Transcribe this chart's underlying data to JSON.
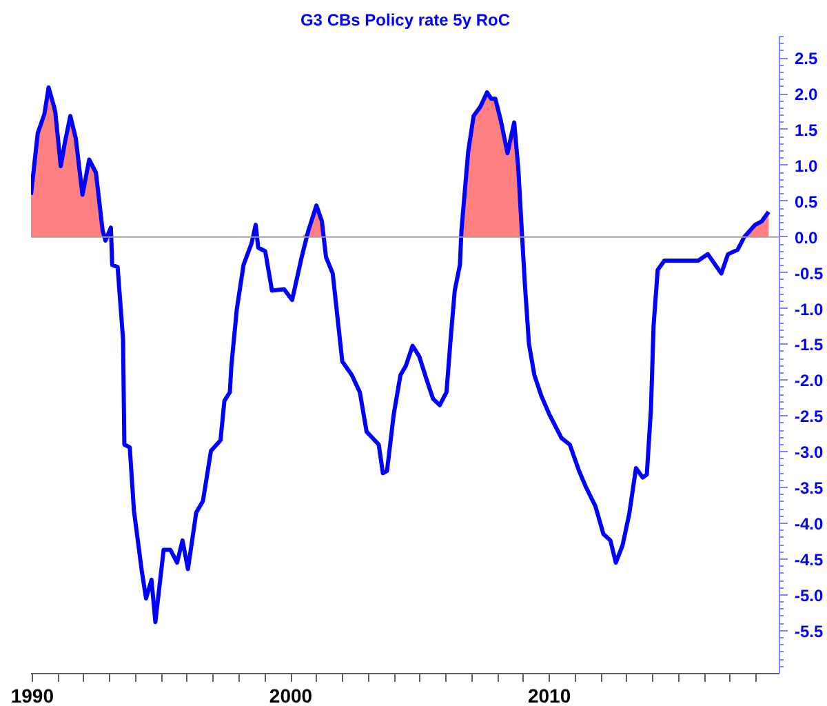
{
  "chart_data": {
    "type": "line",
    "title": "G3 CBs Policy rate 5y RoC",
    "x": [
      1989.95,
      1990.21,
      1990.47,
      1990.63,
      1990.84,
      1990.89,
      1991.1,
      1991.26,
      1991.47,
      1991.68,
      1991.94,
      1992.2,
      1992.46,
      1992.72,
      1992.83,
      1993.04,
      1993.09,
      1993.3,
      1993.51,
      1993.56,
      1993.77,
      1993.93,
      1994.24,
      1994.4,
      1994.61,
      1994.76,
      1995.08,
      1995.34,
      1995.6,
      1995.81,
      1996.02,
      1996.34,
      1996.6,
      1996.91,
      1997.28,
      1997.43,
      1997.64,
      1997.7,
      1997.91,
      1998.17,
      1998.48,
      1998.64,
      1998.74,
      1999.01,
      1999.27,
      1999.74,
      2000.05,
      2000.42,
      2000.68,
      2000.99,
      2001.2,
      2001.36,
      2001.62,
      2001.99,
      2002.36,
      2002.67,
      2002.93,
      2003.4,
      2003.56,
      2003.72,
      2003.98,
      2004.24,
      2004.45,
      2004.71,
      2004.97,
      2005.24,
      2005.5,
      2005.76,
      2006.02,
      2006.18,
      2006.34,
      2006.54,
      2006.6,
      2006.86,
      2007.07,
      2007.33,
      2007.59,
      2007.75,
      2007.91,
      2008.12,
      2008.38,
      2008.64,
      2008.8,
      2008.95,
      2009.06,
      2009.21,
      2009.42,
      2009.69,
      2010.0,
      2010.47,
      2010.79,
      2011.15,
      2011.41,
      2011.78,
      2012.09,
      2012.36,
      2012.57,
      2012.83,
      2013.09,
      2013.35,
      2013.61,
      2013.77,
      2013.93,
      2014.03,
      2014.19,
      2014.45,
      2015.08,
      2015.76,
      2016.13,
      2016.65,
      2016.91,
      2017.28,
      2017.54,
      2017.96,
      2018.22,
      2018.48
    ],
    "series": [
      {
        "type": "area",
        "color": "#ff8080",
        "values": [
          0.59,
          1.45,
          1.72,
          2.09,
          1.82,
          1.74,
          0.99,
          1.32,
          1.69,
          1.38,
          0.59,
          1.08,
          0.9,
          0.09,
          null,
          null,
          null,
          null,
          null,
          null,
          null,
          null,
          null,
          null,
          null,
          null,
          null,
          null,
          null,
          null,
          null,
          null,
          null,
          null,
          null,
          null,
          null,
          null,
          null,
          null,
          null,
          0.17,
          null,
          null,
          null,
          null,
          null,
          null,
          0.09,
          0.44,
          0.22,
          null,
          null,
          null,
          null,
          null,
          null,
          null,
          null,
          null,
          null,
          null,
          null,
          null,
          null,
          null,
          null,
          null,
          null,
          null,
          null,
          null,
          0.09,
          1.19,
          1.69,
          1.82,
          2.02,
          1.93,
          1.93,
          1.63,
          1.17,
          1.6,
          0.95,
          null,
          null,
          null,
          null,
          null,
          null,
          null,
          null,
          null,
          null,
          null,
          null,
          null,
          null,
          null,
          null,
          null,
          null,
          null,
          null,
          null,
          null,
          null,
          null,
          null,
          null,
          null,
          null,
          null,
          0.0,
          0.17,
          0.22,
          0.35
        ]
      },
      {
        "color": "#0000ff",
        "values": [
          0.59,
          1.45,
          1.72,
          2.09,
          1.82,
          1.74,
          0.99,
          1.32,
          1.69,
          1.38,
          0.59,
          1.08,
          0.9,
          0.09,
          -0.05,
          0.13,
          -0.39,
          -0.42,
          -1.43,
          -2.9,
          -2.94,
          -3.82,
          -4.68,
          -5.05,
          -4.79,
          -5.38,
          -4.37,
          -4.37,
          -4.55,
          -4.24,
          -4.64,
          -3.85,
          -3.69,
          -2.99,
          -2.84,
          -2.29,
          -2.17,
          -1.8,
          -1.01,
          -0.39,
          -0.09,
          0.17,
          -0.15,
          -0.2,
          -0.75,
          -0.73,
          -0.88,
          -0.28,
          0.09,
          0.44,
          0.22,
          -0.28,
          -0.51,
          -1.74,
          -1.93,
          -2.17,
          -2.72,
          -2.9,
          -3.3,
          -3.27,
          -2.48,
          -1.93,
          -1.8,
          -1.52,
          -1.67,
          -1.98,
          -2.26,
          -2.35,
          -2.17,
          -1.43,
          -0.75,
          -0.39,
          0.09,
          1.19,
          1.69,
          1.82,
          2.02,
          1.93,
          1.93,
          1.63,
          1.17,
          1.6,
          0.95,
          -0.02,
          -0.7,
          -1.49,
          -1.93,
          -2.22,
          -2.48,
          -2.81,
          -2.9,
          -3.27,
          -3.49,
          -3.76,
          -4.15,
          -4.24,
          -4.55,
          -4.31,
          -3.87,
          -3.23,
          -3.36,
          -3.32,
          -2.4,
          -1.25,
          -0.46,
          -0.33,
          -0.33,
          -0.33,
          -0.24,
          -0.51,
          -0.24,
          -0.18,
          0.0,
          0.17,
          0.22,
          0.35
        ]
      }
    ],
    "ref_lines": [
      {
        "axis": "y",
        "value": 0,
        "color": "#a0a0a0"
      }
    ],
    "xlim": [
      1989.95,
      2018.9
    ],
    "ylim": [
      -6.1,
      2.8
    ],
    "xticks": [
      {
        "value": 1990,
        "label": "1990"
      },
      {
        "value": 1991,
        "label": null
      },
      {
        "value": 1992,
        "label": null
      },
      {
        "value": 1993,
        "label": null
      },
      {
        "value": 1994,
        "label": null
      },
      {
        "value": 1995,
        "label": null
      },
      {
        "value": 1996,
        "label": null
      },
      {
        "value": 1997,
        "label": null
      },
      {
        "value": 1998,
        "label": null
      },
      {
        "value": 1999,
        "label": null
      },
      {
        "value": 2000,
        "label": "2000"
      },
      {
        "value": 2001,
        "label": null
      },
      {
        "value": 2002,
        "label": null
      },
      {
        "value": 2003,
        "label": null
      },
      {
        "value": 2004,
        "label": null
      },
      {
        "value": 2005,
        "label": null
      },
      {
        "value": 2006,
        "label": null
      },
      {
        "value": 2007,
        "label": null
      },
      {
        "value": 2008,
        "label": null
      },
      {
        "value": 2009,
        "label": null
      },
      {
        "value": 2010,
        "label": "2010"
      },
      {
        "value": 2011,
        "label": null
      },
      {
        "value": 2012,
        "label": null
      },
      {
        "value": 2013,
        "label": null
      },
      {
        "value": 2014,
        "label": null
      },
      {
        "value": 2015,
        "label": null
      },
      {
        "value": 2016,
        "label": null
      },
      {
        "value": 2017,
        "label": null
      },
      {
        "value": 2018,
        "label": null
      }
    ],
    "yticks": [
      2.5,
      {
        "value": 2.0,
        "label": "2.0"
      },
      1.5,
      {
        "value": 1.0,
        "label": "1.0"
      },
      0.5,
      {
        "value": 0.0,
        "label": "0.0"
      },
      -0.5,
      {
        "value": -1.0,
        "label": "-1.0"
      },
      -1.5,
      {
        "value": -2.0,
        "label": "-2.0"
      },
      -2.5,
      {
        "value": -3.0,
        "label": "-3.0"
      },
      -3.5,
      {
        "value": -4.0,
        "label": "-4.0"
      },
      -4.5,
      {
        "value": -5.0,
        "label": "-5.0"
      },
      -5.5
    ],
    "grid": false,
    "marker": "none",
    "line_style": "solid"
  }
}
